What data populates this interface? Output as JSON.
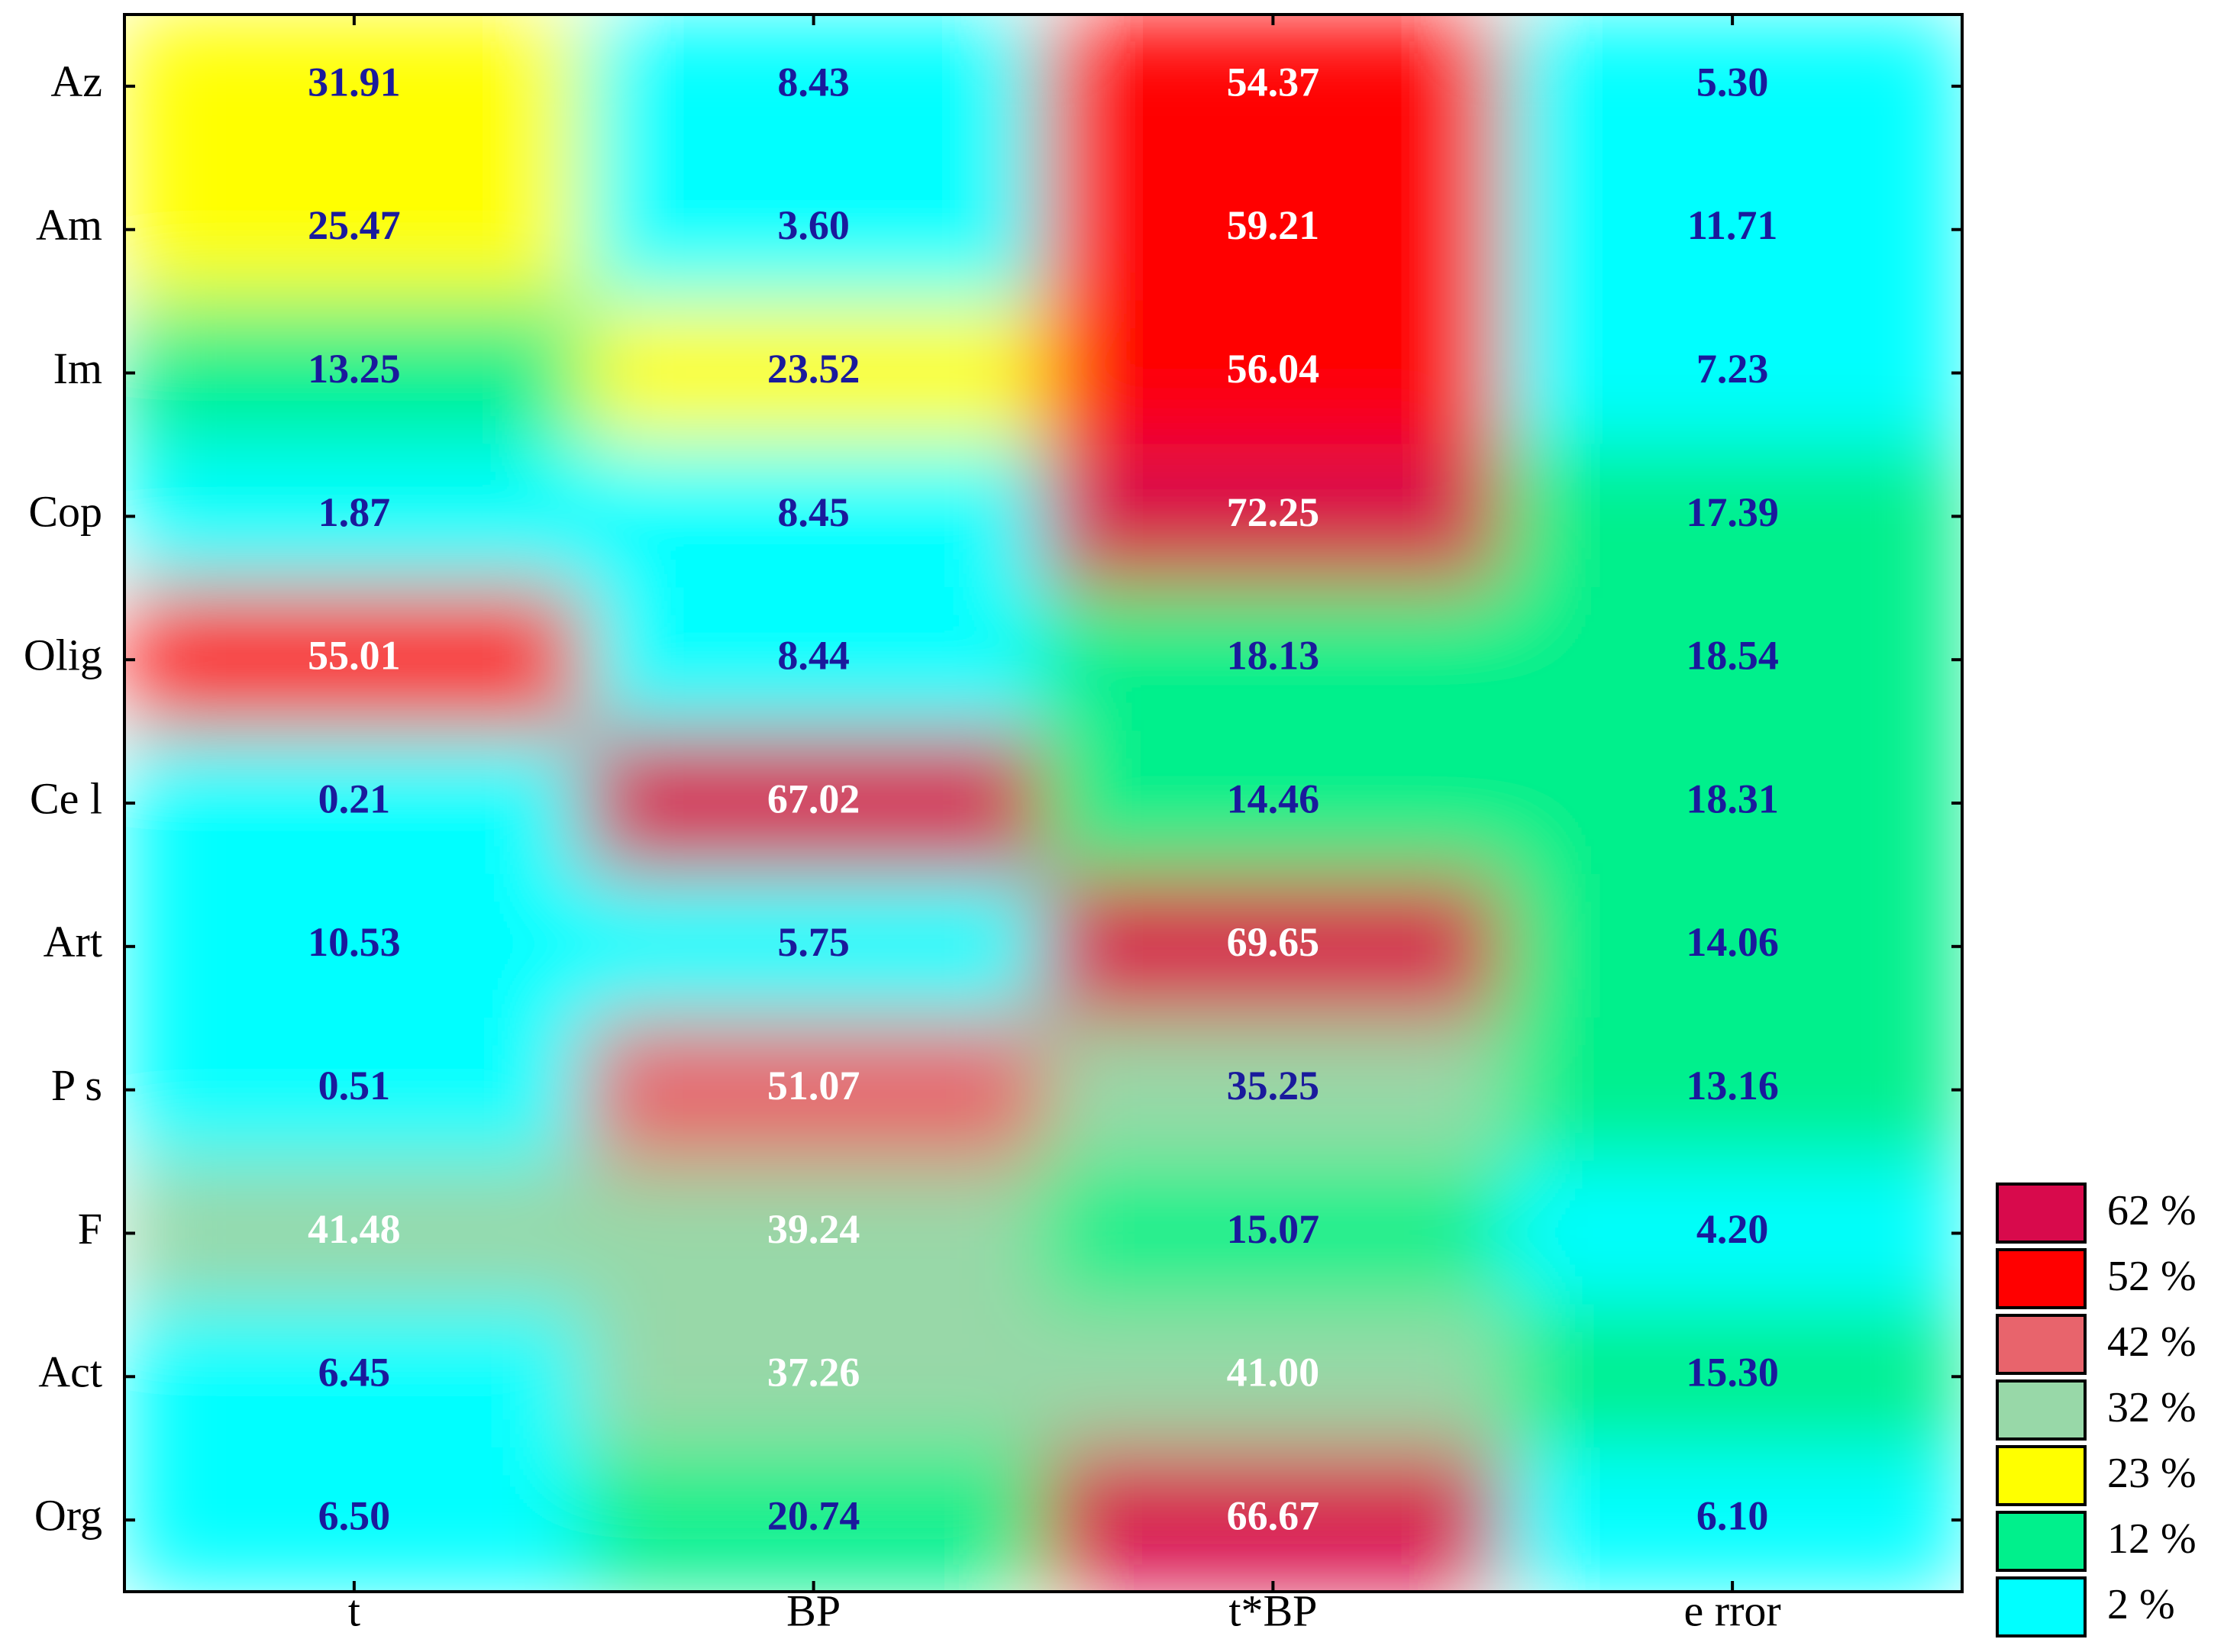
{
  "chart_data": {
    "type": "heatmap",
    "columns": [
      "t",
      "BP",
      "t*BP",
      "e rror"
    ],
    "rows": [
      "Az",
      "Am",
      "Im",
      "Cop",
      "Olig",
      "Ce l",
      "Art",
      "P s",
      "F",
      "Act",
      "Org"
    ],
    "values": [
      [
        31.91,
        8.43,
        54.37,
        5.3
      ],
      [
        25.47,
        3.6,
        59.21,
        11.71
      ],
      [
        13.25,
        23.52,
        56.04,
        7.23
      ],
      [
        1.87,
        8.45,
        72.25,
        17.39
      ],
      [
        55.01,
        8.44,
        18.13,
        18.54
      ],
      [
        0.21,
        67.02,
        14.46,
        18.31
      ],
      [
        10.53,
        5.75,
        69.65,
        14.06
      ],
      [
        0.51,
        51.07,
        35.25,
        13.16
      ],
      [
        41.48,
        39.24,
        15.07,
        4.2
      ],
      [
        6.45,
        37.26,
        41.0,
        15.3
      ],
      [
        6.5,
        20.74,
        66.67,
        6.1
      ]
    ],
    "value_labels": [
      [
        "31.91",
        "8.43",
        "54.37",
        "5.30"
      ],
      [
        "25.47",
        "3.60",
        "59.21",
        "11.71"
      ],
      [
        "13.25",
        "23.52",
        "56.04",
        "7.23"
      ],
      [
        "1.87",
        "8.45",
        "72.25",
        "17.39"
      ],
      [
        "55.01",
        "8.44",
        "18.13",
        "18.54"
      ],
      [
        "0.21",
        "67.02",
        "14.46",
        "18.31"
      ],
      [
        "10.53",
        "5.75",
        "69.65",
        "14.06"
      ],
      [
        "0.51",
        "51.07",
        "35.25",
        "13.16"
      ],
      [
        "41.48",
        "39.24",
        "15.07",
        "4.20"
      ],
      [
        "6.45",
        "37.26",
        "41.00",
        "15.30"
      ],
      [
        "6.50",
        "20.74",
        "66.67",
        "6.10"
      ]
    ],
    "legend": [
      {
        "value": 62,
        "label": "62 %",
        "color": "#d80a4c"
      },
      {
        "value": 52,
        "label": "52 %",
        "color": "#ff0000"
      },
      {
        "value": 42,
        "label": "42 %",
        "color": "#e8646c"
      },
      {
        "value": 32,
        "label": "32 %",
        "color": "#98d8a8"
      },
      {
        "value": 23,
        "label": "23 %",
        "color": "#ffff00"
      },
      {
        "value": 12,
        "label": "12 %",
        "color": "#00f08c"
      },
      {
        "value": 2,
        "label": "2 %",
        "color": "#00ffff"
      }
    ]
  }
}
